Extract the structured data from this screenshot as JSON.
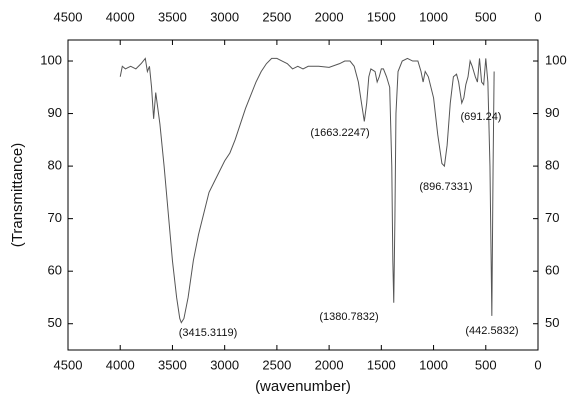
{
  "chart_data": {
    "type": "line",
    "x_label": "(wavenumber)",
    "y_label": "(Transmittance)",
    "xlim": [
      4500,
      0
    ],
    "ylim": [
      45,
      104
    ],
    "xticks": [
      4500,
      4000,
      3500,
      3000,
      2500,
      2000,
      1500,
      1000,
      500,
      0
    ],
    "yticks": [
      50,
      60,
      70,
      80,
      90,
      100
    ],
    "color": "#555555",
    "x": [
      4000,
      3980,
      3950,
      3900,
      3850,
      3800,
      3760,
      3740,
      3720,
      3700,
      3680,
      3660,
      3640,
      3620,
      3580,
      3540,
      3500,
      3460,
      3430,
      3415,
      3390,
      3350,
      3300,
      3250,
      3200,
      3150,
      3100,
      3050,
      3000,
      2950,
      2900,
      2850,
      2800,
      2750,
      2700,
      2650,
      2600,
      2550,
      2500,
      2450,
      2400,
      2350,
      2300,
      2250,
      2200,
      2100,
      2000,
      1900,
      1850,
      1800,
      1760,
      1720,
      1690,
      1663,
      1640,
      1620,
      1600,
      1560,
      1540,
      1520,
      1500,
      1480,
      1450,
      1420,
      1400,
      1390,
      1381,
      1370,
      1360,
      1340,
      1300,
      1250,
      1200,
      1150,
      1120,
      1100,
      1080,
      1050,
      1000,
      960,
      920,
      896,
      870,
      840,
      810,
      780,
      760,
      730,
      710,
      691,
      670,
      650,
      630,
      600,
      580,
      560,
      540,
      520,
      500,
      480,
      460,
      442,
      430,
      420
    ],
    "values": [
      97,
      99,
      98.5,
      99,
      98.5,
      99.5,
      100.5,
      98,
      99,
      95,
      89,
      94,
      91,
      88,
      80,
      71,
      62,
      55,
      51,
      50.2,
      51,
      55,
      62,
      67,
      71,
      75,
      77,
      79,
      81,
      82.5,
      85,
      88,
      91,
      93.5,
      96,
      98,
      99.5,
      100.5,
      100.5,
      100,
      99.5,
      98.5,
      99,
      98.5,
      99,
      99,
      98.8,
      99.5,
      100,
      100,
      99,
      96,
      92,
      88.5,
      92,
      97,
      98.5,
      98,
      96,
      97,
      98.5,
      98.5,
      97,
      95,
      80,
      62,
      54,
      70,
      90,
      98,
      100,
      100.5,
      100,
      100,
      98,
      96,
      98,
      97,
      93,
      86,
      80.5,
      80,
      84,
      92,
      97,
      97.5,
      96,
      92,
      93,
      95.5,
      97,
      100,
      99,
      97,
      96,
      100.5,
      96,
      95.5,
      100.5,
      96,
      80,
      51.5,
      80,
      98
    ],
    "annotations": [
      "(3415.3119)",
      "(1663.2247)",
      "(1380.7832)",
      "(896.7331)",
      "(691.24)",
      "(442.5832)"
    ]
  }
}
